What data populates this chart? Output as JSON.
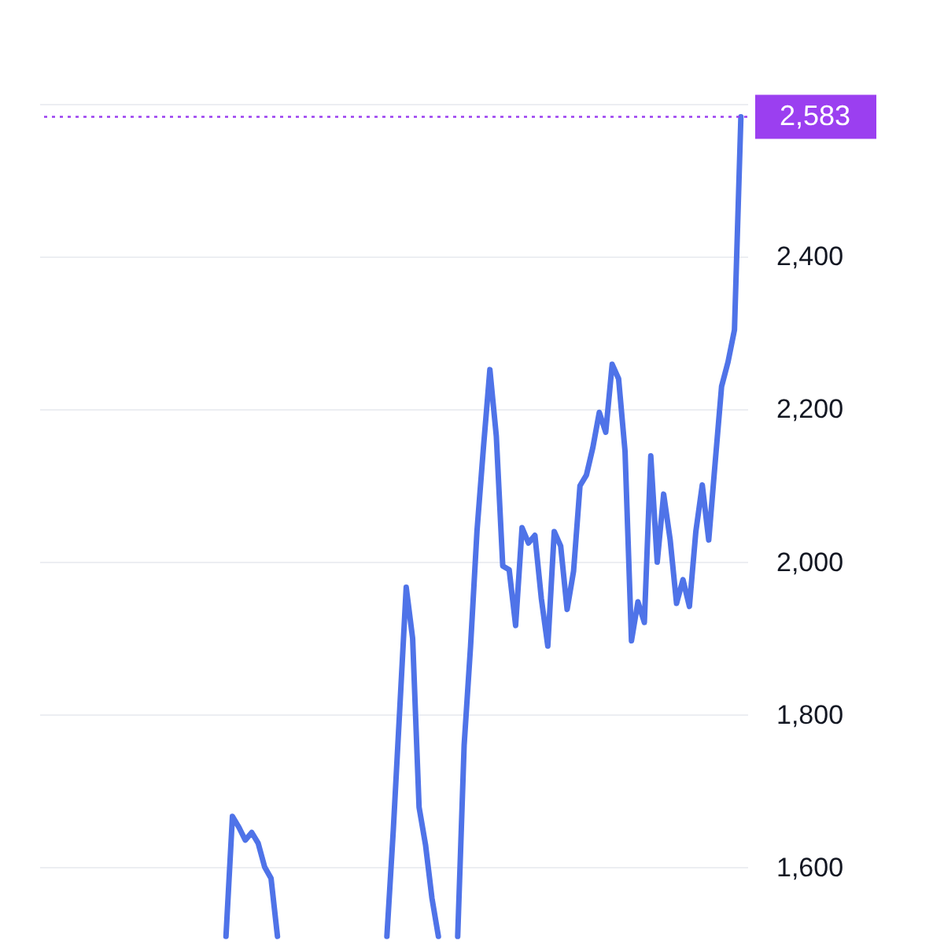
{
  "chart_data": {
    "type": "line",
    "categories": [
      null,
      null,
      null,
      null,
      null,
      null,
      null,
      null,
      null,
      null,
      null,
      null,
      null,
      null,
      null,
      null,
      null,
      null,
      null,
      null,
      null,
      null,
      null,
      null,
      null,
      null,
      null,
      null,
      null,
      null,
      null,
      null,
      null,
      null,
      null,
      null,
      null,
      null,
      null,
      null,
      null,
      null,
      null,
      null,
      null,
      null,
      null,
      null,
      null,
      null,
      null,
      null,
      null,
      null,
      null,
      null,
      null,
      null,
      null,
      null,
      null,
      null,
      null,
      null,
      null,
      null,
      null,
      null,
      null,
      null,
      null,
      null,
      null,
      null,
      null,
      null,
      null,
      null,
      null,
      null,
      null,
      null,
      null,
      null,
      null,
      null,
      null,
      null,
      null,
      null,
      null,
      null,
      null,
      null,
      null,
      null,
      null,
      null,
      null,
      null,
      null,
      null,
      null,
      null,
      null,
      null,
      null,
      null,
      null
    ],
    "series": [
      {
        "color": "#4f73e8",
        "values": [
          null,
          null,
          null,
          null,
          null,
          null,
          null,
          null,
          null,
          null,
          null,
          null,
          null,
          null,
          null,
          null,
          null,
          null,
          null,
          null,
          null,
          null,
          null,
          null,
          null,
          null,
          null,
          null,
          1510,
          1667,
          1653,
          1636,
          1646,
          1632,
          1601,
          1586,
          1510,
          null,
          null,
          null,
          null,
          null,
          null,
          null,
          null,
          null,
          null,
          null,
          null,
          null,
          null,
          null,
          null,
          1510,
          1650,
          1808,
          1967,
          1900,
          1679,
          1630,
          1560,
          1510,
          null,
          null,
          1510,
          1760,
          1890,
          2041,
          2150,
          2252,
          2165,
          1995,
          1990,
          1917,
          2045,
          2025,
          2035,
          1952,
          1890,
          2040,
          2021,
          1938,
          1988,
          2100,
          2114,
          2150,
          2196,
          2170,
          2259,
          2240,
          2145,
          1897,
          1948,
          1921,
          2139,
          2000,
          2089,
          2030,
          1946,
          1977,
          1942,
          2040,
          2101,
          2029,
          2130,
          2230,
          2262,
          2304,
          2583
        ]
      }
    ],
    "ylim": [
      1500,
      2600
    ],
    "yticks": [
      {
        "value": 1600,
        "label": "1,600"
      },
      {
        "value": 1800,
        "label": "1,800"
      },
      {
        "value": 2000,
        "label": "2,000"
      },
      {
        "value": 2200,
        "label": "2,200"
      },
      {
        "value": 2400,
        "label": "2,400"
      },
      {
        "value": 2600,
        "label": null
      }
    ],
    "tick_labels": "y",
    "grid": "y",
    "ref_lines": [
      {
        "axis": "y",
        "value": 2583,
        "label": "2,583",
        "color": "#9b3ff0",
        "line_style": "dotted"
      }
    ]
  }
}
